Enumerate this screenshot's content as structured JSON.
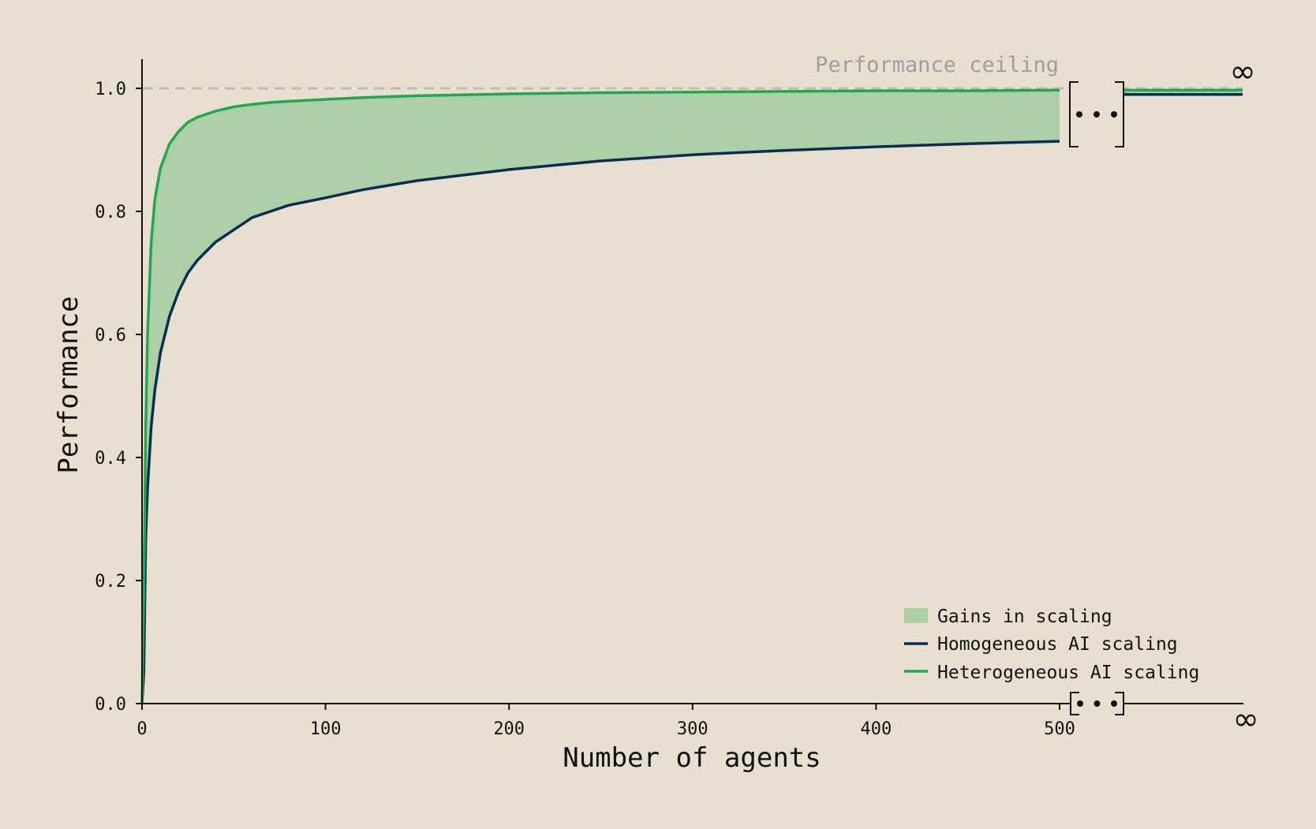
{
  "chart_data": {
    "type": "line",
    "x": [
      1,
      2,
      3,
      5,
      7,
      10,
      15,
      20,
      25,
      30,
      40,
      50,
      60,
      70,
      80,
      100,
      120,
      150,
      200,
      250,
      300,
      350,
      400,
      450,
      500
    ],
    "series": [
      {
        "name": "Homogeneous AI scaling",
        "color": "#0B2D52",
        "values": [
          0.05,
          0.27,
          0.35,
          0.45,
          0.51,
          0.57,
          0.63,
          0.67,
          0.7,
          0.72,
          0.75,
          0.77,
          0.79,
          0.8,
          0.81,
          0.822,
          0.835,
          0.85,
          0.868,
          0.882,
          0.892,
          0.899,
          0.905,
          0.91,
          0.914
        ]
      },
      {
        "name": "Heterogeneous AI scaling",
        "color": "#22A750",
        "values": [
          0.18,
          0.45,
          0.6,
          0.75,
          0.82,
          0.87,
          0.91,
          0.93,
          0.945,
          0.953,
          0.963,
          0.97,
          0.974,
          0.977,
          0.979,
          0.982,
          0.985,
          0.988,
          0.991,
          0.993,
          0.994,
          0.995,
          0.996,
          0.996,
          0.997
        ]
      }
    ],
    "infinity_values": {
      "Homogeneous AI scaling": 0.99,
      "Heterogeneous AI scaling": 0.997
    },
    "fill_between": {
      "name": "Gains in scaling",
      "color": "#ADCFA8"
    },
    "ceiling": {
      "value": 1.0,
      "label": "Performance ceiling",
      "color": "#BDBDBD"
    },
    "xlabel": "Number of agents",
    "ylabel": "Performance",
    "xlim": [
      0,
      500
    ],
    "ylim": [
      0,
      1.0
    ],
    "xticks": [
      0,
      100,
      200,
      300,
      400,
      500
    ],
    "xtick_labels": [
      "0",
      "100",
      "200",
      "300",
      "400",
      "500"
    ],
    "yticks": [
      0.0,
      0.2,
      0.4,
      0.6,
      0.8,
      1.0
    ],
    "ytick_labels": [
      "0.0",
      "0.2",
      "0.4",
      "0.6",
      "0.8",
      "1.0"
    ],
    "axis_break_label": "• • •",
    "infinity_label": "∞",
    "legend": {
      "placement": "bottom-right",
      "entries": [
        "Gains in scaling",
        "Homogeneous AI scaling",
        "Heterogeneous AI scaling"
      ]
    },
    "grid": false
  },
  "colors": {
    "background": "#E9DFD0",
    "axis": "#111111"
  }
}
